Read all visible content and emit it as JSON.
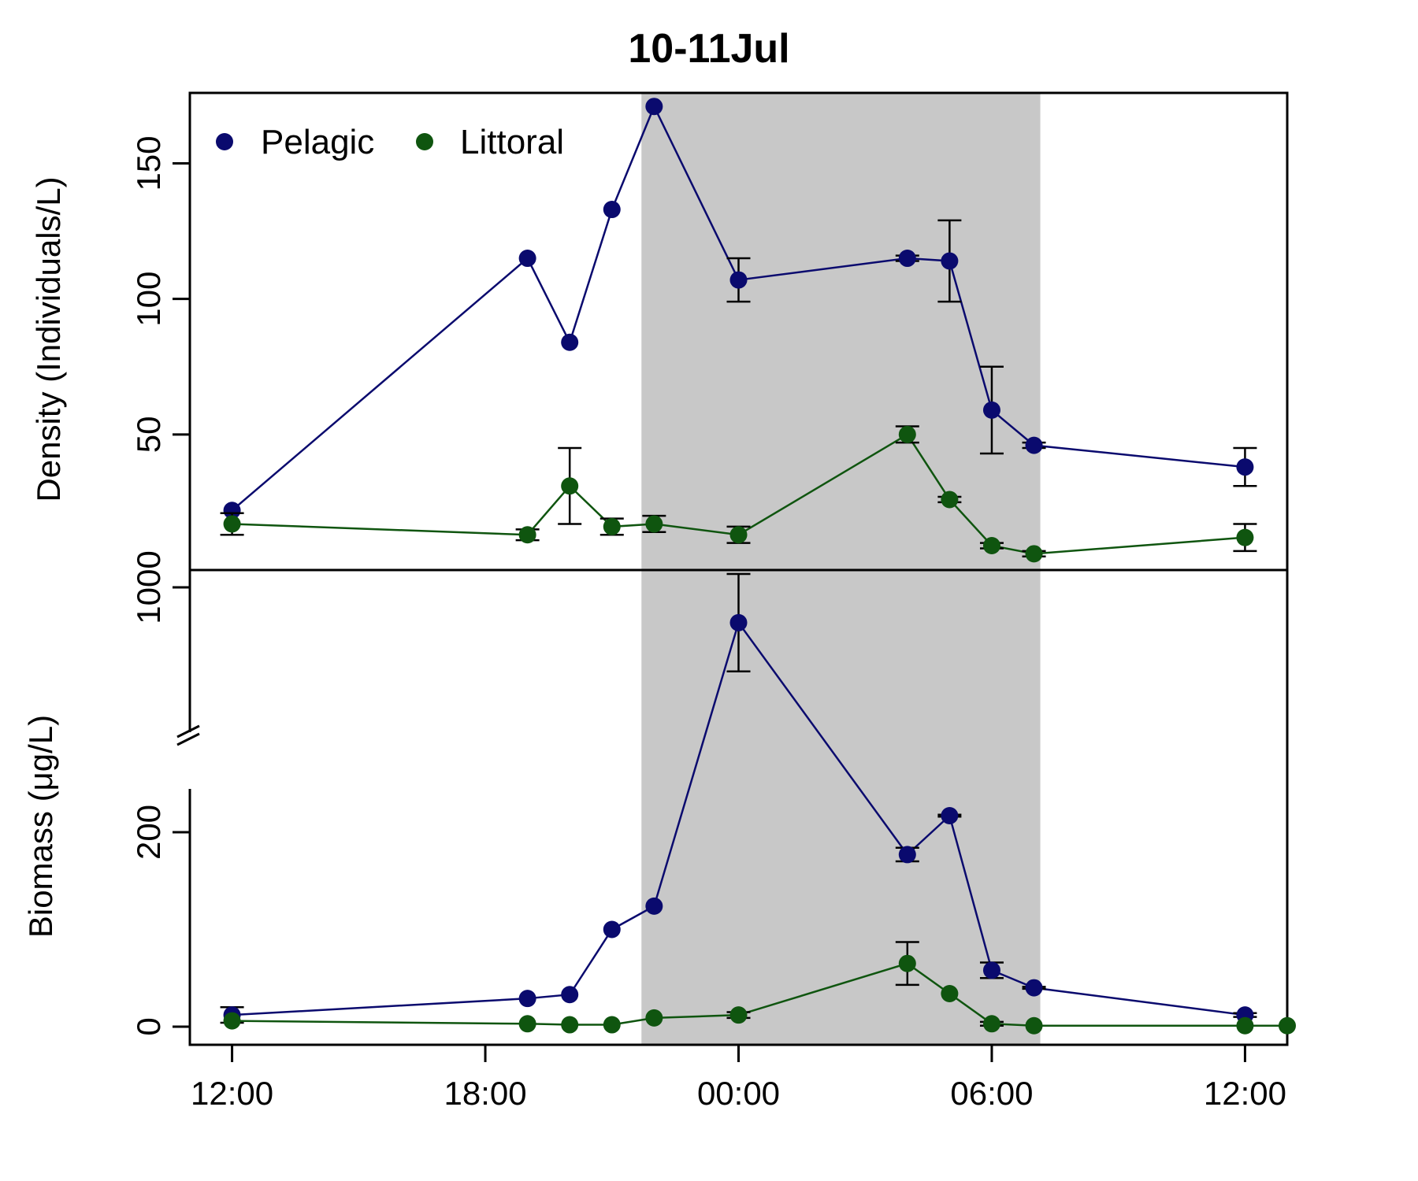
{
  "chart_data": {
    "type": "line",
    "title": "10-11Jul",
    "x_ticks": [
      "12:00",
      "18:00",
      "00:00",
      "06:00",
      "12:00"
    ],
    "x_tick_hours": [
      12,
      18,
      24,
      30,
      36
    ],
    "x_range_hours": [
      11,
      37
    ],
    "night_shading_hours": [
      21.7,
      31.15
    ],
    "legend": {
      "placement": "top-left",
      "entries": [
        "Pelagic",
        "Littoral"
      ]
    },
    "colors": {
      "Pelagic": "#0a0a6e",
      "Littoral": "#0f550f",
      "night": "#c8c8c8"
    },
    "panels": [
      {
        "id": "density",
        "ylabel": "Density (Individuals/L)",
        "ylim": [
          0,
          176
        ],
        "y_ticks": [
          50,
          100,
          150
        ],
        "series": [
          {
            "name": "Pelagic",
            "x_hours": [
              12,
              19,
              20,
              21,
              22,
              24,
              28,
              29,
              30,
              31,
              36
            ],
            "values": [
              22,
              115,
              84,
              133,
              171,
              107,
              115,
              114,
              59,
              46,
              38
            ],
            "error": [
              null,
              null,
              null,
              null,
              null,
              8,
              1,
              15,
              16,
              1,
              7
            ]
          },
          {
            "name": "Littoral",
            "x_hours": [
              12,
              19,
              20,
              21,
              22,
              24,
              28,
              29,
              30,
              31,
              36
            ],
            "values": [
              17,
              13,
              31,
              16,
              17,
              13,
              50,
              26,
              9,
              6,
              12
            ],
            "error": [
              4,
              2,
              14,
              3,
              3,
              3,
              3,
              1,
              1,
              1,
              5
            ]
          }
        ]
      },
      {
        "id": "biomass",
        "ylabel": "Biomass (μg/L)",
        "y_ticks": [
          0,
          200,
          1000
        ],
        "axis_break": true,
        "series": [
          {
            "name": "Pelagic",
            "x_hours": [
              12,
              19,
              20,
              21,
              22,
              24,
              28,
              29,
              30,
              31,
              36
            ],
            "values": [
              12,
              29,
              33,
              100,
              124,
              855,
              177,
              217,
              58,
              40,
              12
            ],
            "error": [
              8,
              null,
              null,
              null,
              null,
              200,
              7,
              1,
              8,
              1,
              2
            ]
          },
          {
            "name": "Littoral",
            "x_hours": [
              12,
              19,
              20,
              21,
              22,
              24,
              28,
              29,
              30,
              31,
              36,
              37
            ],
            "values": [
              6,
              3,
              2,
              2,
              9,
              12,
              65,
              34,
              3,
              1,
              1,
              1
            ],
            "error": [
              null,
              null,
              null,
              null,
              null,
              3,
              22,
              null,
              2,
              null,
              null,
              null
            ]
          }
        ]
      }
    ]
  }
}
